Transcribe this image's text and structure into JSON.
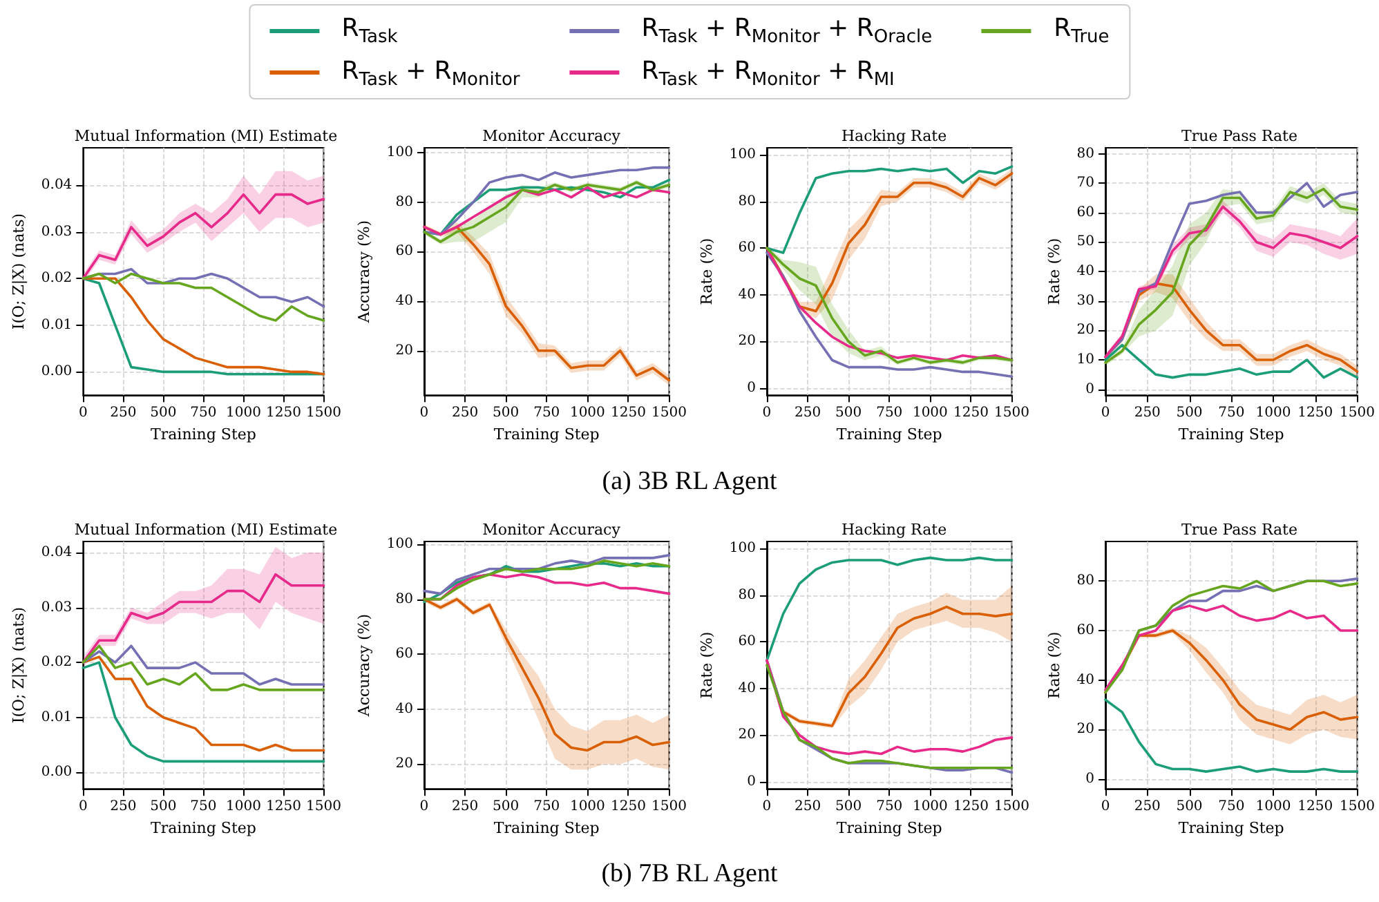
{
  "chart_data": [
    {
      "type": "line",
      "title": "Mutual Information (MI) Estimate",
      "xlabel": "Training Step",
      "ylabel": "I(O; Z|X) (nats)",
      "legend": "top",
      "grid": true,
      "annotations": [
        "(a) 3B RL Agent"
      ],
      "xlim": [
        0,
        1500
      ],
      "xticks": [
        0,
        250,
        500,
        750,
        1000,
        1250,
        1500
      ],
      "ylim": [
        -0.005,
        0.048
      ],
      "yticks": [
        {
          "value": 0,
          "label": "0.00"
        },
        {
          "value": 0.01,
          "label": "0.01"
        },
        {
          "value": 0.02,
          "label": "0.02"
        },
        {
          "value": 0.03,
          "label": "0.03"
        },
        {
          "value": 0.04,
          "label": "0.04"
        }
      ],
      "x": [
        0,
        100,
        200,
        300,
        400,
        500,
        600,
        700,
        800,
        900,
        1000,
        1100,
        1200,
        1300,
        1400,
        1500
      ],
      "series": [
        {
          "name": "R$_{Task}$",
          "color": "#1b9e77",
          "values": [
            0.02,
            0.019,
            0.01,
            0.001,
            0.0005,
            0,
            0,
            0,
            0,
            -0.0005,
            -0.0005,
            -0.0005,
            -0.0005,
            -0.0005,
            -0.0005,
            -0.0005
          ]
        },
        {
          "name": "R$_{Task}$ + R$_{Monitor}$",
          "color": "#d95f02",
          "values": [
            0.02,
            0.02,
            0.02,
            0.016,
            0.011,
            0.007,
            0.005,
            0.003,
            0.002,
            0.001,
            0.001,
            0.001,
            0.0005,
            0,
            0,
            -0.0005
          ]
        },
        {
          "name": "R$_{Task}$ + R$_{Monitor}$ + R$_{Oracle}$",
          "color": "#7570b3",
          "values": [
            0.02,
            0.021,
            0.021,
            0.022,
            0.019,
            0.019,
            0.02,
            0.02,
            0.021,
            0.02,
            0.018,
            0.016,
            0.016,
            0.015,
            0.016,
            0.014
          ]
        },
        {
          "name": "R$_{Task}$ + R$_{Monitor}$ + R$_{MI}$",
          "color": "#e7298a",
          "values": [
            0.02,
            0.025,
            0.024,
            0.031,
            0.027,
            0.029,
            0.032,
            0.034,
            0.031,
            0.034,
            0.038,
            0.034,
            0.038,
            0.038,
            0.036,
            0.037
          ],
          "lower": [
            0.019,
            0.024,
            0.023,
            0.0295,
            0.0255,
            0.0275,
            0.03,
            0.032,
            0.028,
            0.031,
            0.034,
            0.03,
            0.033,
            0.033,
            0.031,
            0.032
          ],
          "upper": [
            0.021,
            0.026,
            0.025,
            0.0325,
            0.0285,
            0.0305,
            0.034,
            0.036,
            0.034,
            0.037,
            0.042,
            0.038,
            0.043,
            0.043,
            0.041,
            0.042
          ]
        },
        {
          "name": "R$_{True}$",
          "color": "#66a61e",
          "values": [
            0.02,
            0.021,
            0.019,
            0.021,
            0.02,
            0.019,
            0.019,
            0.018,
            0.018,
            0.016,
            0.014,
            0.012,
            0.011,
            0.014,
            0.012,
            0.011
          ]
        }
      ]
    },
    {
      "type": "line",
      "title": "Monitor Accuracy",
      "xlabel": "Training Step",
      "ylabel": "Accuracy (%)",
      "grid": true,
      "xlim": [
        0,
        1500
      ],
      "xticks": [
        0,
        250,
        500,
        750,
        1000,
        1250,
        1500
      ],
      "ylim": [
        2,
        102
      ],
      "yticks": [
        20,
        40,
        60,
        80,
        100
      ],
      "x": [
        0,
        100,
        200,
        300,
        400,
        500,
        600,
        700,
        800,
        900,
        1000,
        1100,
        1200,
        1300,
        1400,
        1500
      ],
      "series": [
        {
          "name": "R$_{Task}$",
          "color": "#1b9e77",
          "values": [
            68,
            67,
            75,
            80,
            85,
            85,
            86,
            86,
            85,
            86,
            85,
            84,
            82,
            86,
            86,
            89
          ]
        },
        {
          "name": "R$_{Task}$ + R$_{Monitor}$",
          "color": "#d95f02",
          "values": [
            70,
            67,
            70,
            63,
            55,
            38,
            30,
            20,
            20,
            13,
            14,
            14,
            20,
            10,
            13,
            8
          ],
          "lower": [
            69,
            66,
            68,
            60,
            51,
            34,
            27,
            17,
            18,
            11,
            12,
            12,
            18,
            8,
            11,
            6
          ],
          "upper": [
            71,
            68,
            72,
            66,
            59,
            42,
            33,
            23,
            22,
            15,
            16,
            16,
            22,
            12,
            15,
            10
          ]
        },
        {
          "name": "R$_{Task}$ + R$_{Monitor}$ + R$_{Oracle}$",
          "color": "#7570b3",
          "values": [
            68,
            67,
            73,
            80,
            88,
            90,
            91,
            89,
            92,
            90,
            91,
            92,
            93,
            93,
            94,
            94
          ]
        },
        {
          "name": "R$_{Task}$ + R$_{Monitor}$ + R$_{MI}$",
          "color": "#e7298a",
          "values": [
            70,
            67,
            70,
            74,
            78,
            82,
            85,
            83,
            85,
            82,
            86,
            82,
            84,
            82,
            85,
            84
          ]
        },
        {
          "name": "R$_{True}$",
          "color": "#66a61e",
          "values": [
            68,
            64,
            68,
            70,
            74,
            78,
            85,
            84,
            87,
            85,
            87,
            86,
            85,
            88,
            85,
            87
          ],
          "lower": [
            67,
            63,
            64,
            64,
            68,
            72,
            82,
            82,
            86,
            84,
            86,
            85,
            84,
            87,
            84,
            86
          ],
          "upper": [
            69,
            65,
            71,
            73,
            78,
            83,
            87,
            86,
            88,
            86,
            88,
            87,
            86,
            89,
            86,
            88
          ]
        }
      ]
    },
    {
      "type": "line",
      "title": "Hacking Rate",
      "xlabel": "Training Step",
      "ylabel": "Rate (%)",
      "grid": true,
      "xlim": [
        0,
        1500
      ],
      "xticks": [
        0,
        250,
        500,
        750,
        1000,
        1250,
        1500
      ],
      "ylim": [
        -3,
        103
      ],
      "yticks": [
        0,
        20,
        40,
        60,
        80,
        100
      ],
      "x": [
        0,
        100,
        200,
        300,
        400,
        500,
        600,
        700,
        800,
        900,
        1000,
        1100,
        1200,
        1300,
        1400,
        1500
      ],
      "series": [
        {
          "name": "R$_{Task}$",
          "color": "#1b9e77",
          "values": [
            60,
            58,
            75,
            90,
            92,
            93,
            93,
            94,
            93,
            94,
            93,
            94,
            88,
            93,
            92,
            95
          ]
        },
        {
          "name": "R$_{Task}$ + R$_{Monitor}$",
          "color": "#d95f02",
          "values": [
            60,
            48,
            35,
            33,
            45,
            62,
            70,
            82,
            82,
            88,
            88,
            86,
            82,
            90,
            87,
            92
          ],
          "lower": [
            59,
            47,
            33,
            30,
            38,
            55,
            64,
            78,
            80,
            86,
            86,
            84,
            80,
            88,
            85,
            90
          ],
          "upper": [
            61,
            49,
            37,
            37,
            52,
            68,
            75,
            85,
            84,
            90,
            90,
            88,
            84,
            92,
            89,
            94
          ]
        },
        {
          "name": "R$_{Task}$ + R$_{Monitor}$ + R$_{Oracle}$",
          "color": "#7570b3",
          "values": [
            58,
            48,
            33,
            22,
            12,
            9,
            9,
            9,
            8,
            8,
            9,
            8,
            7,
            7,
            6,
            5
          ]
        },
        {
          "name": "R$_{Task}$ + R$_{Monitor}$ + R$_{MI}$",
          "color": "#e7298a",
          "values": [
            60,
            47,
            35,
            28,
            22,
            18,
            16,
            15,
            13,
            14,
            13,
            12,
            14,
            13,
            14,
            12
          ]
        },
        {
          "name": "R$_{True}$",
          "color": "#66a61e",
          "values": [
            60,
            53,
            47,
            44,
            30,
            20,
            14,
            16,
            11,
            13,
            11,
            12,
            11,
            13,
            13,
            12
          ],
          "lower": [
            59,
            51,
            42,
            36,
            22,
            15,
            12,
            14,
            10,
            12,
            10,
            11,
            10,
            12,
            12,
            11
          ],
          "upper": [
            61,
            55,
            54,
            52,
            36,
            25,
            16,
            18,
            12,
            14,
            12,
            13,
            12,
            14,
            14,
            13
          ]
        }
      ]
    },
    {
      "type": "line",
      "title": "True Pass Rate",
      "xlabel": "Training Step",
      "ylabel": "Rate (%)",
      "grid": true,
      "xlim": [
        0,
        1500
      ],
      "xticks": [
        0,
        250,
        500,
        750,
        1000,
        1250,
        1500
      ],
      "ylim": [
        -2,
        82
      ],
      "yticks": [
        0,
        10,
        20,
        30,
        40,
        50,
        60,
        70,
        80
      ],
      "x": [
        0,
        100,
        200,
        300,
        400,
        500,
        600,
        700,
        800,
        900,
        1000,
        1100,
        1200,
        1300,
        1400,
        1500
      ],
      "series": [
        {
          "name": "R$_{Task}$",
          "color": "#1b9e77",
          "values": [
            10,
            15,
            10,
            5,
            4,
            5,
            5,
            6,
            7,
            5,
            6,
            6,
            10,
            4,
            7,
            4
          ]
        },
        {
          "name": "R$_{Task}$ + R$_{Monitor}$",
          "color": "#d95f02",
          "values": [
            11,
            17,
            32,
            36,
            35,
            27,
            20,
            15,
            15,
            10,
            10,
            13,
            15,
            12,
            10,
            6
          ],
          "lower": [
            10,
            16,
            30,
            33,
            31,
            23,
            17,
            13,
            13,
            8,
            8,
            11,
            13,
            10,
            8,
            4
          ],
          "upper": [
            12,
            18,
            34,
            39,
            39,
            31,
            23,
            17,
            17,
            12,
            12,
            15,
            17,
            14,
            12,
            8
          ]
        },
        {
          "name": "R$_{Task}$ + R$_{Monitor}$ + R$_{Oracle}$",
          "color": "#7570b3",
          "values": [
            11,
            17,
            33,
            36,
            50,
            63,
            64,
            66,
            67,
            60,
            60,
            65,
            70,
            62,
            66,
            67
          ]
        },
        {
          "name": "R$_{Task}$ + R$_{Monitor}$ + R$_{MI}$",
          "color": "#e7298a",
          "values": [
            11,
            18,
            34,
            35,
            47,
            53,
            54,
            62,
            57,
            50,
            48,
            53,
            52,
            50,
            48,
            52
          ],
          "lower": [
            10,
            17,
            33,
            34,
            45,
            51,
            52,
            60,
            55,
            47,
            45,
            50,
            49,
            46,
            44,
            46
          ],
          "upper": [
            12,
            19,
            35,
            36,
            49,
            55,
            56,
            64,
            59,
            53,
            51,
            56,
            55,
            54,
            52,
            58
          ]
        },
        {
          "name": "R$_{True}$",
          "color": "#66a61e",
          "values": [
            9,
            13,
            22,
            27,
            33,
            49,
            55,
            65,
            65,
            58,
            59,
            67,
            65,
            68,
            62,
            61
          ],
          "lower": [
            8,
            12,
            18,
            20,
            25,
            42,
            50,
            62,
            63,
            56,
            57,
            65,
            63,
            66,
            60,
            59
          ],
          "upper": [
            10,
            14,
            27,
            34,
            42,
            56,
            60,
            68,
            67,
            60,
            61,
            69,
            67,
            70,
            64,
            63
          ]
        }
      ]
    },
    {
      "type": "line",
      "title": "Mutual Information (MI) Estimate",
      "xlabel": "Training Step",
      "ylabel": "I(O; Z|X) (nats)",
      "grid": true,
      "annotations": [
        "(b) 7B RL Agent"
      ],
      "xlim": [
        0,
        1500
      ],
      "xticks": [
        0,
        250,
        500,
        750,
        1000,
        1250,
        1500
      ],
      "ylim": [
        -0.003,
        0.042
      ],
      "yticks": [
        {
          "value": 0,
          "label": "0.00"
        },
        {
          "value": 0.01,
          "label": "0.01"
        },
        {
          "value": 0.02,
          "label": "0.02"
        },
        {
          "value": 0.03,
          "label": "0.03"
        },
        {
          "value": 0.04,
          "label": "0.04"
        }
      ],
      "x": [
        0,
        100,
        200,
        300,
        400,
        500,
        600,
        700,
        800,
        900,
        1000,
        1100,
        1200,
        1300,
        1400,
        1500
      ],
      "series": [
        {
          "name": "R$_{Task}$",
          "color": "#1b9e77",
          "values": [
            0.019,
            0.02,
            0.01,
            0.005,
            0.003,
            0.002,
            0.002,
            0.002,
            0.002,
            0.002,
            0.002,
            0.002,
            0.002,
            0.002,
            0.002,
            0.002
          ]
        },
        {
          "name": "R$_{Task}$ + R$_{Monitor}$",
          "color": "#d95f02",
          "values": [
            0.02,
            0.021,
            0.017,
            0.017,
            0.012,
            0.01,
            0.009,
            0.008,
            0.005,
            0.005,
            0.005,
            0.004,
            0.005,
            0.004,
            0.004,
            0.004
          ]
        },
        {
          "name": "R$_{Task}$ + R$_{Monitor}$ + R$_{Oracle}$",
          "color": "#7570b3",
          "values": [
            0.02,
            0.022,
            0.02,
            0.023,
            0.019,
            0.019,
            0.019,
            0.02,
            0.018,
            0.018,
            0.018,
            0.016,
            0.017,
            0.016,
            0.016,
            0.016
          ]
        },
        {
          "name": "R$_{Task}$ + R$_{Monitor}$ + R$_{MI}$",
          "color": "#e7298a",
          "values": [
            0.02,
            0.024,
            0.024,
            0.029,
            0.028,
            0.029,
            0.031,
            0.031,
            0.031,
            0.033,
            0.033,
            0.031,
            0.036,
            0.034,
            0.034,
            0.034
          ],
          "lower": [
            0.019,
            0.023,
            0.023,
            0.028,
            0.027,
            0.027,
            0.029,
            0.029,
            0.028,
            0.029,
            0.029,
            0.026,
            0.031,
            0.029,
            0.028,
            0.027
          ],
          "upper": [
            0.021,
            0.025,
            0.025,
            0.03,
            0.029,
            0.031,
            0.033,
            0.033,
            0.034,
            0.037,
            0.037,
            0.036,
            0.041,
            0.039,
            0.04,
            0.04
          ]
        },
        {
          "name": "R$_{True}$",
          "color": "#66a61e",
          "values": [
            0.02,
            0.023,
            0.019,
            0.02,
            0.016,
            0.017,
            0.016,
            0.018,
            0.015,
            0.015,
            0.016,
            0.015,
            0.015,
            0.015,
            0.015,
            0.015
          ]
        }
      ]
    },
    {
      "type": "line",
      "title": "Monitor Accuracy",
      "xlabel": "Training Step",
      "ylabel": "Accuracy (%)",
      "grid": true,
      "xlim": [
        0,
        1500
      ],
      "xticks": [
        0,
        250,
        500,
        750,
        1000,
        1250,
        1500
      ],
      "ylim": [
        11,
        101
      ],
      "yticks": [
        20,
        40,
        60,
        80,
        100
      ],
      "x": [
        0,
        100,
        200,
        300,
        400,
        500,
        600,
        700,
        800,
        900,
        1000,
        1100,
        1200,
        1300,
        1400,
        1500
      ],
      "series": [
        {
          "name": "R$_{Task}$",
          "color": "#1b9e77",
          "values": [
            79,
            82,
            86,
            88,
            89,
            92,
            90,
            90,
            91,
            92,
            93,
            93,
            92,
            93,
            92,
            92
          ]
        },
        {
          "name": "R$_{Task}$ + R$_{Monitor}$",
          "color": "#d95f02",
          "values": [
            80,
            77,
            80,
            75,
            78,
            66,
            55,
            44,
            31,
            26,
            25,
            28,
            28,
            30,
            27,
            28
          ],
          "lower": [
            79,
            76,
            79,
            74,
            77,
            63,
            50,
            36,
            22,
            18,
            18,
            20,
            20,
            22,
            19,
            18
          ],
          "upper": [
            81,
            78,
            81,
            76,
            79,
            69,
            60,
            52,
            40,
            34,
            32,
            36,
            36,
            38,
            35,
            38
          ]
        },
        {
          "name": "R$_{Task}$ + R$_{Monitor}$ + R$_{Oracle}$",
          "color": "#7570b3",
          "values": [
            83,
            82,
            87,
            89,
            91,
            91,
            91,
            91,
            93,
            94,
            93,
            95,
            95,
            95,
            95,
            96
          ]
        },
        {
          "name": "R$_{Task}$ + R$_{Monitor}$ + R$_{MI}$",
          "color": "#e7298a",
          "values": [
            80,
            80,
            85,
            88,
            89,
            88,
            89,
            88,
            86,
            86,
            85,
            86,
            84,
            84,
            83,
            82
          ]
        },
        {
          "name": "R$_{True}$",
          "color": "#66a61e",
          "values": [
            80,
            80,
            84,
            87,
            89,
            91,
            90,
            91,
            91,
            91,
            92,
            94,
            93,
            92,
            93,
            92
          ]
        }
      ]
    },
    {
      "type": "line",
      "title": "Hacking Rate",
      "xlabel": "Training Step",
      "ylabel": "Rate (%)",
      "grid": true,
      "xlim": [
        0,
        1500
      ],
      "xticks": [
        0,
        250,
        500,
        750,
        1000,
        1250,
        1500
      ],
      "ylim": [
        -3,
        103
      ],
      "yticks": [
        0,
        20,
        40,
        60,
        80,
        100
      ],
      "x": [
        0,
        100,
        200,
        300,
        400,
        500,
        600,
        700,
        800,
        900,
        1000,
        1100,
        1200,
        1300,
        1400,
        1500
      ],
      "series": [
        {
          "name": "R$_{Task}$",
          "color": "#1b9e77",
          "values": [
            52,
            72,
            85,
            91,
            94,
            95,
            95,
            95,
            93,
            95,
            96,
            95,
            95,
            96,
            95,
            95
          ]
        },
        {
          "name": "R$_{Task}$ + R$_{Monitor}$",
          "color": "#d95f02",
          "values": [
            52,
            30,
            26,
            25,
            24,
            38,
            45,
            55,
            66,
            70,
            72,
            75,
            72,
            72,
            71,
            72
          ],
          "lower": [
            51,
            29,
            25,
            24,
            23,
            32,
            38,
            48,
            60,
            65,
            67,
            69,
            66,
            66,
            64,
            60
          ],
          "upper": [
            53,
            31,
            27,
            26,
            25,
            44,
            52,
            62,
            72,
            75,
            77,
            81,
            78,
            78,
            78,
            84
          ]
        },
        {
          "name": "R$_{Task}$ + R$_{Monitor}$ + R$_{Oracle}$",
          "color": "#7570b3",
          "values": [
            52,
            30,
            18,
            14,
            10,
            8,
            8,
            8,
            8,
            7,
            6,
            5,
            5,
            6,
            6,
            4
          ]
        },
        {
          "name": "R$_{Task}$ + R$_{Monitor}$ + R$_{MI}$",
          "color": "#e7298a",
          "values": [
            52,
            28,
            20,
            15,
            13,
            12,
            13,
            12,
            15,
            13,
            14,
            14,
            13,
            15,
            18,
            19
          ]
        },
        {
          "name": "R$_{True}$",
          "color": "#66a61e",
          "values": [
            50,
            30,
            18,
            15,
            10,
            8,
            9,
            9,
            8,
            7,
            6,
            6,
            6,
            6,
            6,
            6
          ]
        }
      ]
    },
    {
      "type": "line",
      "title": "True Pass Rate",
      "xlabel": "Training Step",
      "ylabel": "Rate (%)",
      "grid": true,
      "xlim": [
        0,
        1500
      ],
      "xticks": [
        0,
        250,
        500,
        750,
        1000,
        1250,
        1500
      ],
      "ylim": [
        -4,
        96
      ],
      "yticks": [
        0,
        20,
        40,
        60,
        80
      ],
      "x": [
        0,
        100,
        200,
        300,
        400,
        500,
        600,
        700,
        800,
        900,
        1000,
        1100,
        1200,
        1300,
        1400,
        1500
      ],
      "series": [
        {
          "name": "R$_{Task}$",
          "color": "#1b9e77",
          "values": [
            32,
            27,
            15,
            6,
            4,
            4,
            3,
            4,
            5,
            3,
            4,
            3,
            3,
            4,
            3,
            3
          ]
        },
        {
          "name": "R$_{Task}$ + R$_{Monitor}$",
          "color": "#d95f02",
          "values": [
            35,
            45,
            58,
            58,
            60,
            55,
            48,
            40,
            30,
            24,
            22,
            20,
            25,
            27,
            24,
            25
          ],
          "lower": [
            34,
            44,
            57,
            57,
            59,
            52,
            43,
            35,
            24,
            18,
            16,
            14,
            18,
            20,
            17,
            16
          ],
          "upper": [
            36,
            46,
            59,
            59,
            61,
            58,
            53,
            45,
            36,
            30,
            28,
            26,
            32,
            34,
            31,
            34
          ]
        },
        {
          "name": "R$_{Task}$ + R$_{Monitor}$ + R$_{Oracle}$",
          "color": "#7570b3",
          "values": [
            36,
            45,
            60,
            62,
            68,
            72,
            72,
            76,
            76,
            78,
            76,
            78,
            80,
            80,
            80,
            81
          ]
        },
        {
          "name": "R$_{Task}$ + R$_{Monitor}$ + R$_{MI}$",
          "color": "#e7298a",
          "values": [
            36,
            46,
            58,
            60,
            68,
            70,
            68,
            70,
            66,
            64,
            65,
            68,
            65,
            66,
            60,
            60
          ]
        },
        {
          "name": "R$_{True}$",
          "color": "#66a61e",
          "values": [
            35,
            44,
            60,
            62,
            70,
            74,
            76,
            78,
            77,
            80,
            76,
            78,
            80,
            80,
            78,
            79
          ]
        }
      ]
    }
  ]
}
